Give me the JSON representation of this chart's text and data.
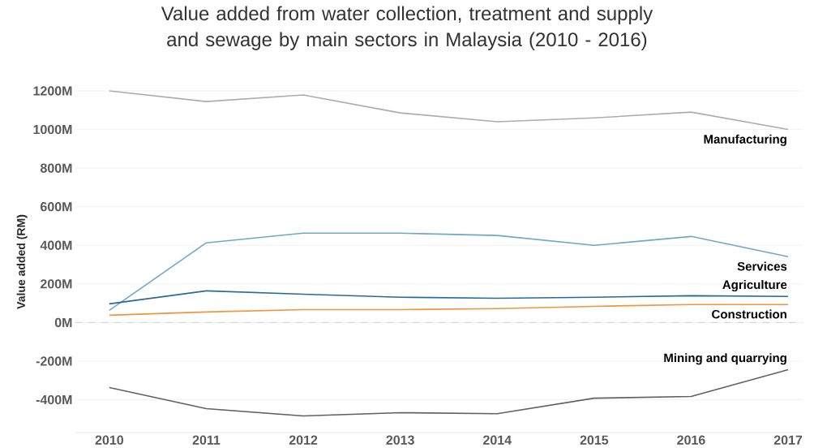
{
  "chart_data": {
    "type": "line",
    "title": "Value added from water collection, treatment and supply and sewage by main sectors in Malaysia (2010 - 2016)",
    "ylabel": "Value added (RM)",
    "x": [
      2010,
      2011,
      2012,
      2013,
      2014,
      2015,
      2016,
      2017
    ],
    "series": [
      {
        "name": "Manufacturing",
        "color": "#a8adb4",
        "values": [
          1200,
          1145,
          1179,
          1086,
          1040,
          1060,
          1090,
          1000
        ]
      },
      {
        "name": "Services",
        "color": "#6fa8c8",
        "values": [
          63,
          413,
          463,
          463,
          451,
          400,
          446,
          341
        ]
      },
      {
        "name": "Agriculture",
        "color": "#2a6a94",
        "values": [
          97,
          164,
          147,
          131,
          126,
          131,
          139,
          135
        ]
      },
      {
        "name": "Construction",
        "color": "#f0953a",
        "values": [
          38,
          55,
          67,
          67,
          72,
          84,
          93,
          93
        ]
      },
      {
        "name": "Mining and quarrying",
        "color": "#5f6166",
        "values": [
          -337,
          -446,
          -484,
          -467,
          -472,
          -392,
          -383,
          -244
        ]
      }
    ],
    "xlim": [
      2009.65,
      2017.15
    ],
    "ylim": [
      -570,
      1200
    ],
    "xticks": [
      2010,
      2011,
      2012,
      2013,
      2014,
      2015,
      2016,
      2017
    ],
    "yticks": [
      {
        "value": -400,
        "label": "-400M"
      },
      {
        "value": -200,
        "label": "-200M"
      },
      {
        "value": 0,
        "label": "0M"
      },
      {
        "value": 200,
        "label": "200M"
      },
      {
        "value": 400,
        "label": "400M"
      },
      {
        "value": 600,
        "label": "600M"
      },
      {
        "value": 800,
        "label": "800M"
      },
      {
        "value": 1000,
        "label": "1000M"
      },
      {
        "value": 1200,
        "label": "1200M"
      }
    ],
    "ref_lines": [
      {
        "axis": "y",
        "value": 0,
        "color": "#c8c8c8",
        "line_style": "dashed"
      }
    ],
    "grid": "y",
    "marker": "none",
    "line_style": "solid"
  }
}
